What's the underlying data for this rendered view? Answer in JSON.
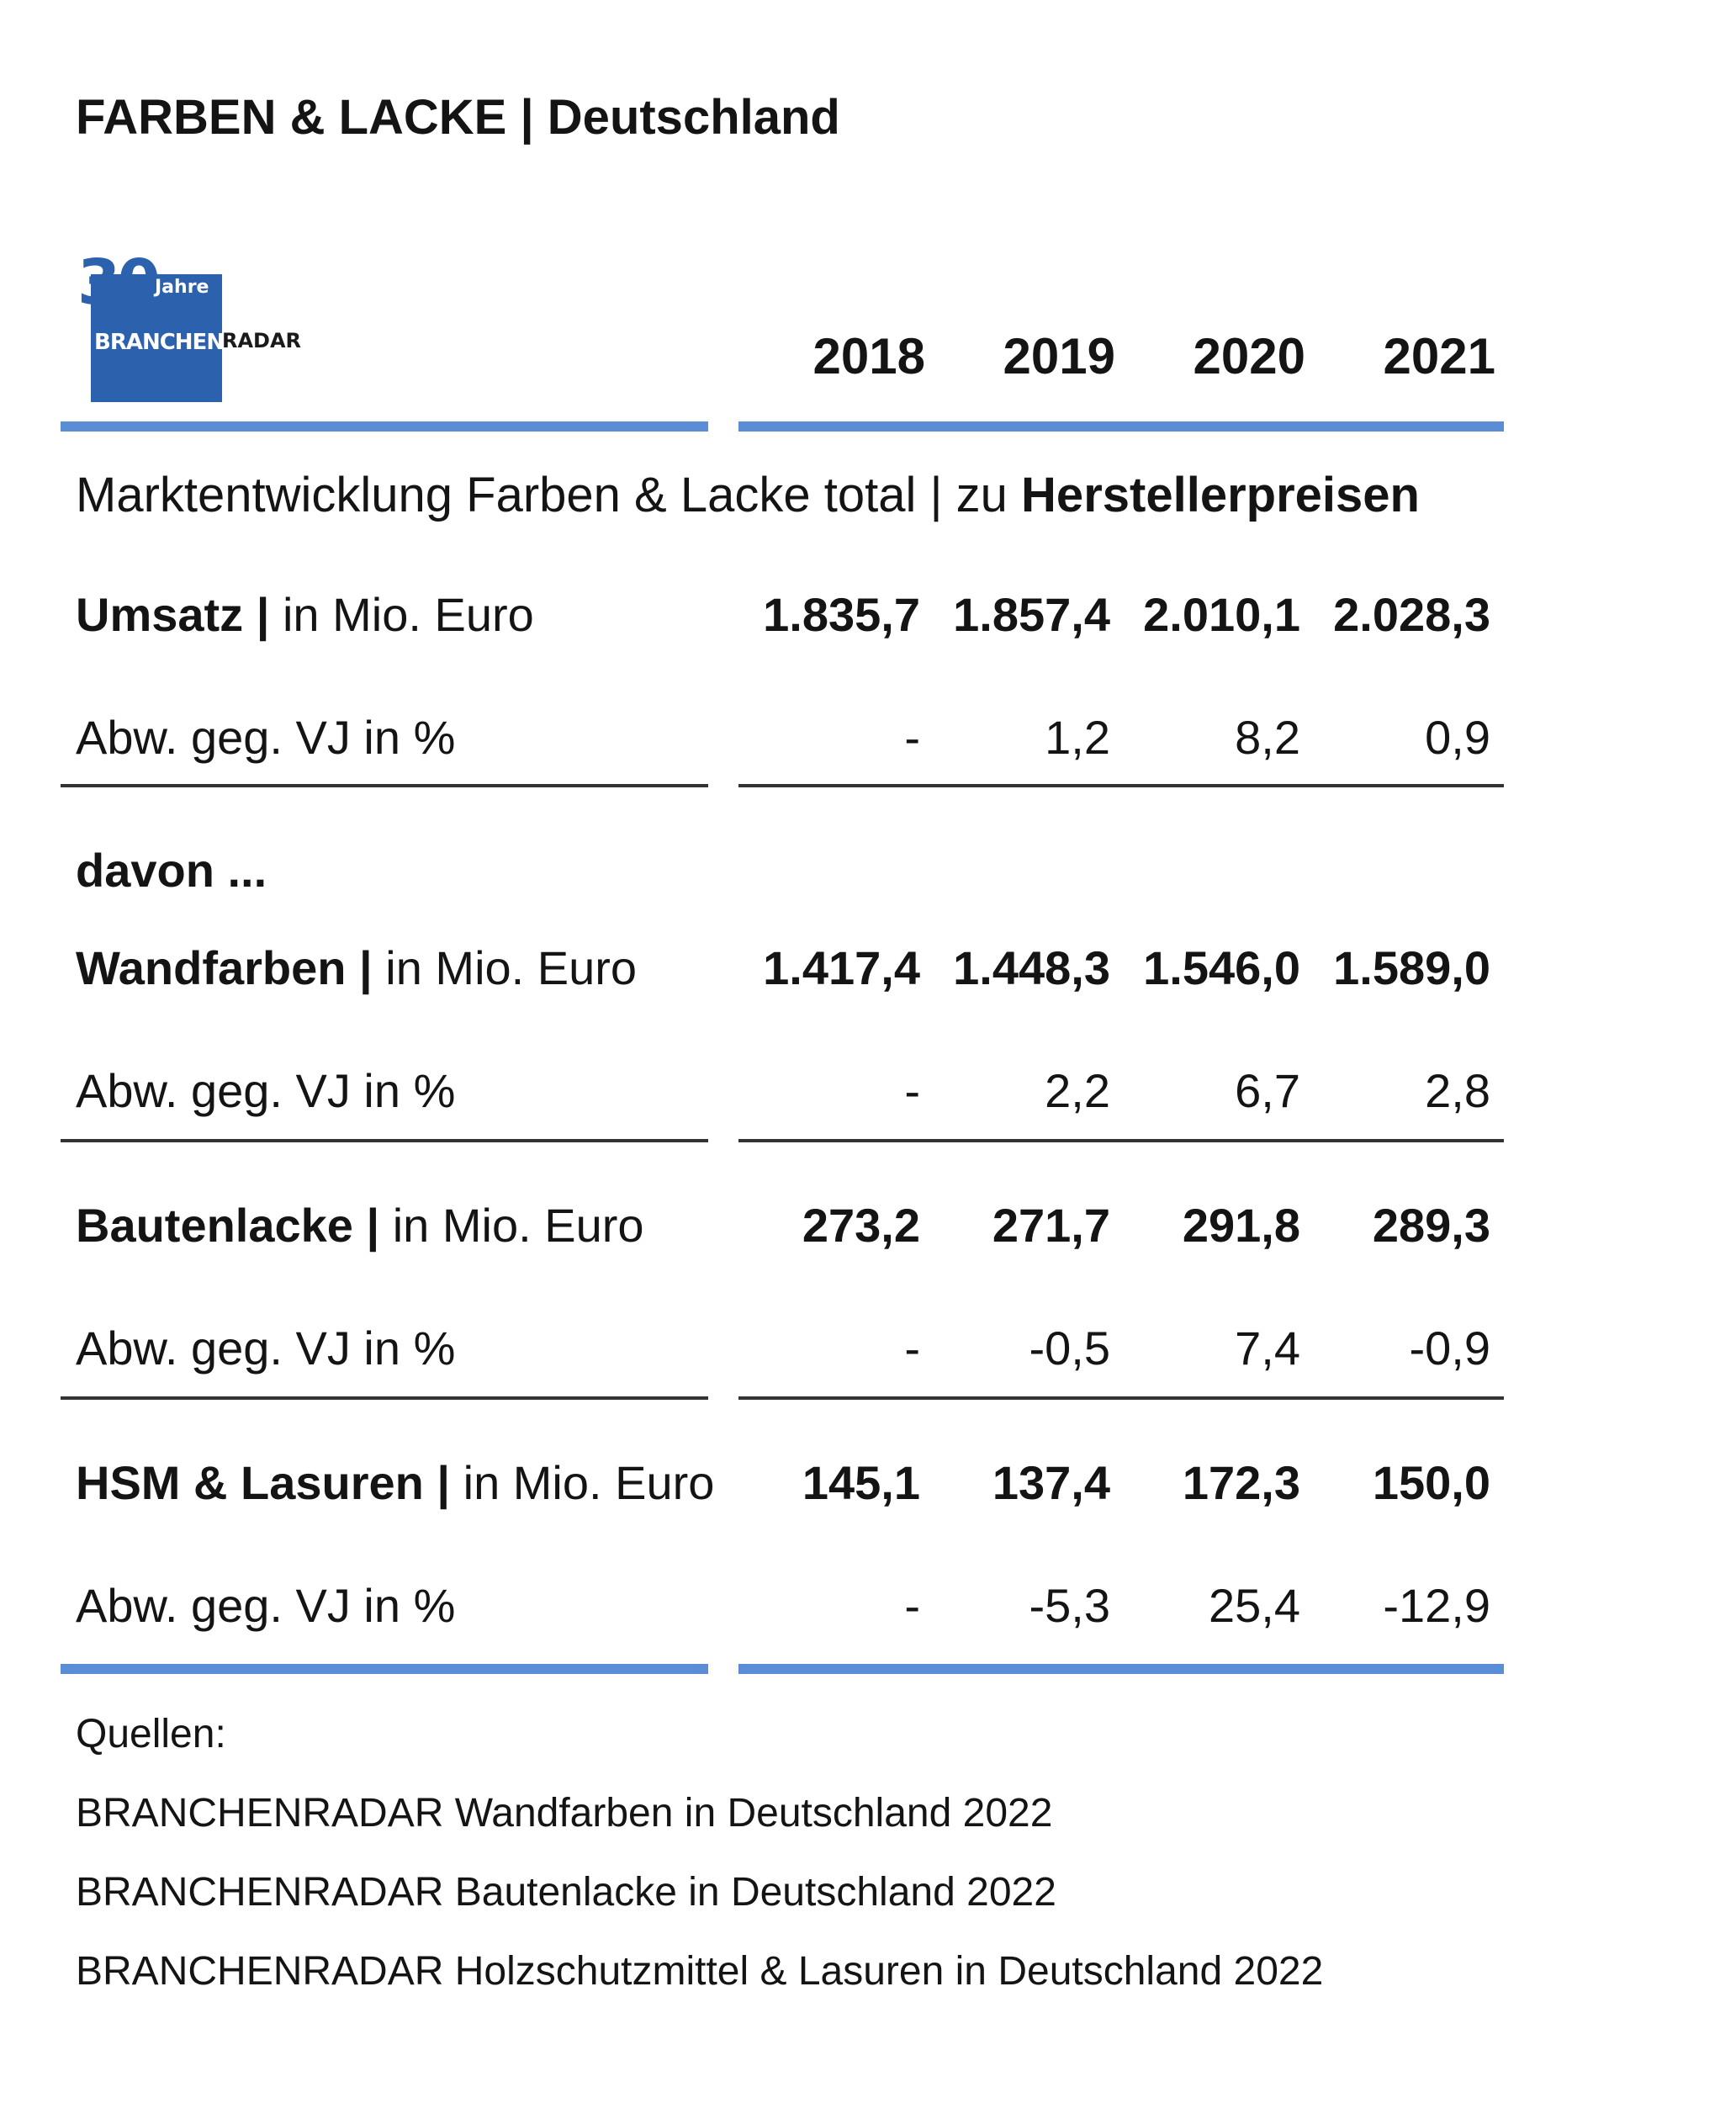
{
  "title": "FARBEN & LACKE | Deutschland",
  "logo": {
    "number": "30",
    "jahre": "Jahre",
    "brand": "BRANCHEN",
    "radar": "RADAR"
  },
  "years": [
    "2018",
    "2019",
    "2020",
    "2021"
  ],
  "section_header": {
    "prefix": "Marktentwicklung Farben & Lacke total | zu ",
    "bold": "Herstellerpreisen"
  },
  "davon_label": "davon ...",
  "rows": [
    {
      "label_bold": "Umsatz |",
      "label_rest": " in Mio. Euro",
      "values": [
        "1.835,7",
        "1.857,4",
        "2.010,1",
        "2.028,3"
      ],
      "change_label": "Abw. geg. VJ in %",
      "change": [
        "-",
        "1,2",
        "8,2",
        "0,9"
      ]
    },
    {
      "label_bold": "Wandfarben |",
      "label_rest": " in Mio. Euro",
      "values": [
        "1.417,4",
        "1.448,3",
        "1.546,0",
        "1.589,0"
      ],
      "change_label": "Abw. geg. VJ in %",
      "change": [
        "-",
        "2,2",
        "6,7",
        "2,8"
      ]
    },
    {
      "label_bold": "Bautenlacke |",
      "label_rest": " in Mio. Euro",
      "values": [
        "273,2",
        "271,7",
        "291,8",
        "289,3"
      ],
      "change_label": "Abw. geg. VJ in %",
      "change": [
        "-",
        "-0,5",
        "7,4",
        "-0,9"
      ]
    },
    {
      "label_bold": "HSM & Lasuren |",
      "label_rest": " in Mio. Euro",
      "values": [
        "145,1",
        "137,4",
        "172,3",
        "150,0"
      ],
      "change_label": "Abw. geg. VJ in %",
      "change": [
        "-",
        "-5,3",
        "25,4",
        "-12,9"
      ]
    }
  ],
  "sources": {
    "heading": "Quellen:",
    "items": [
      "BRANCHENRADAR Wandfarben in Deutschland 2022",
      "BRANCHENRADAR Bautenlacke in Deutschland 2022",
      "BRANCHENRADAR Holzschutzmittel & Lasuren in Deutschland 2022"
    ]
  },
  "colors": {
    "accent_blue": "#5b8cd6",
    "logo_blue": "#2c62ad",
    "rule_dark": "#333333"
  }
}
